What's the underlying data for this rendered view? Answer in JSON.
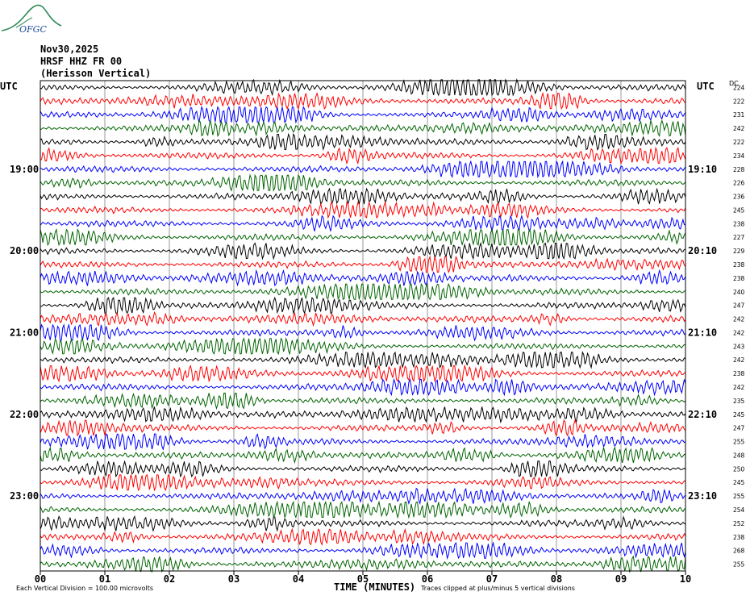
{
  "logo_text": "OFGC",
  "header": {
    "date": "Nov30,2025",
    "station": "HRSF HHZ FR 00",
    "name": "(Herisson Vertical)"
  },
  "utc_left": "UTC",
  "utc_right": "UTC",
  "dc_label": "DC",
  "footer": {
    "scale": "Each Vertical Division = 100.00 microvolts",
    "xlabel": "TIME (MINUTES)",
    "clip": "Traces clipped at plus/minus 5 vertical divisions"
  },
  "colors": {
    "trace_cycle": [
      "#000000",
      "#ff0000",
      "#0000ff",
      "#006400"
    ],
    "grid": "#808080"
  },
  "chart_data": {
    "type": "line",
    "title": "HRSF HHZ FR 00 (Herisson Vertical)",
    "xlabel": "TIME (MINUTES)",
    "xlim": [
      0,
      10
    ],
    "x_ticks": [
      "00",
      "01",
      "02",
      "03",
      "04",
      "05",
      "06",
      "07",
      "08",
      "09",
      "10"
    ],
    "left_time_labels": [
      {
        "row": 6,
        "text": "19:00"
      },
      {
        "row": 12,
        "text": "20:00"
      },
      {
        "row": 18,
        "text": "21:00"
      },
      {
        "row": 24,
        "text": "22:00"
      },
      {
        "row": 30,
        "text": "23:00"
      }
    ],
    "right_time_labels": [
      {
        "row": 6,
        "text": "19:10"
      },
      {
        "row": 12,
        "text": "20:10"
      },
      {
        "row": 18,
        "text": "21:10"
      },
      {
        "row": 24,
        "text": "22:10"
      },
      {
        "row": 30,
        "text": "23:10"
      }
    ],
    "dc_offsets": [
      224,
      222,
      231,
      242,
      222,
      234,
      228,
      226,
      236,
      245,
      238,
      227,
      229,
      238,
      238,
      240,
      247,
      242,
      242,
      243,
      242,
      238,
      242,
      235,
      245,
      247,
      255,
      248,
      250,
      245,
      255,
      254,
      252,
      238,
      268,
      255
    ],
    "grid": true
  }
}
